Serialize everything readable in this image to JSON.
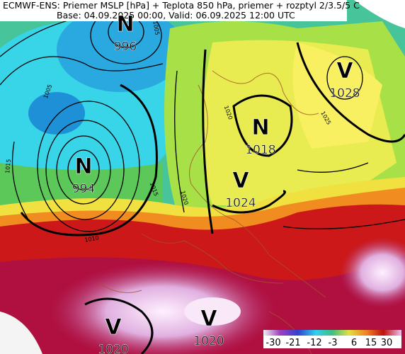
{
  "header": {
    "title": "ECMWF-ENS: Priemer MSLP [hPa] + Teplota 850 hPa, priemer + rozptyl 2/3.5/5 C",
    "subtitle": "Base: 04.09.2025 00:00, Valid: 06.09.2025 12:00 UTC"
  },
  "pressure_centers": [
    {
      "type": "N",
      "value": "996"
    },
    {
      "type": "N",
      "value": "994"
    },
    {
      "type": "V",
      "value": "1028"
    },
    {
      "type": "N",
      "value": "1018"
    },
    {
      "type": "V",
      "value": "1024"
    },
    {
      "type": "V",
      "value": "1020"
    },
    {
      "type": "V",
      "value": "1020"
    }
  ],
  "isobar_labels": [
    "1005",
    "1005",
    "1010",
    "1015",
    "1015",
    "1020",
    "1020",
    "1025"
  ],
  "colorbar": {
    "labels": [
      "-30",
      "-21",
      "-12",
      "-3",
      "6",
      "15",
      "30"
    ]
  }
}
